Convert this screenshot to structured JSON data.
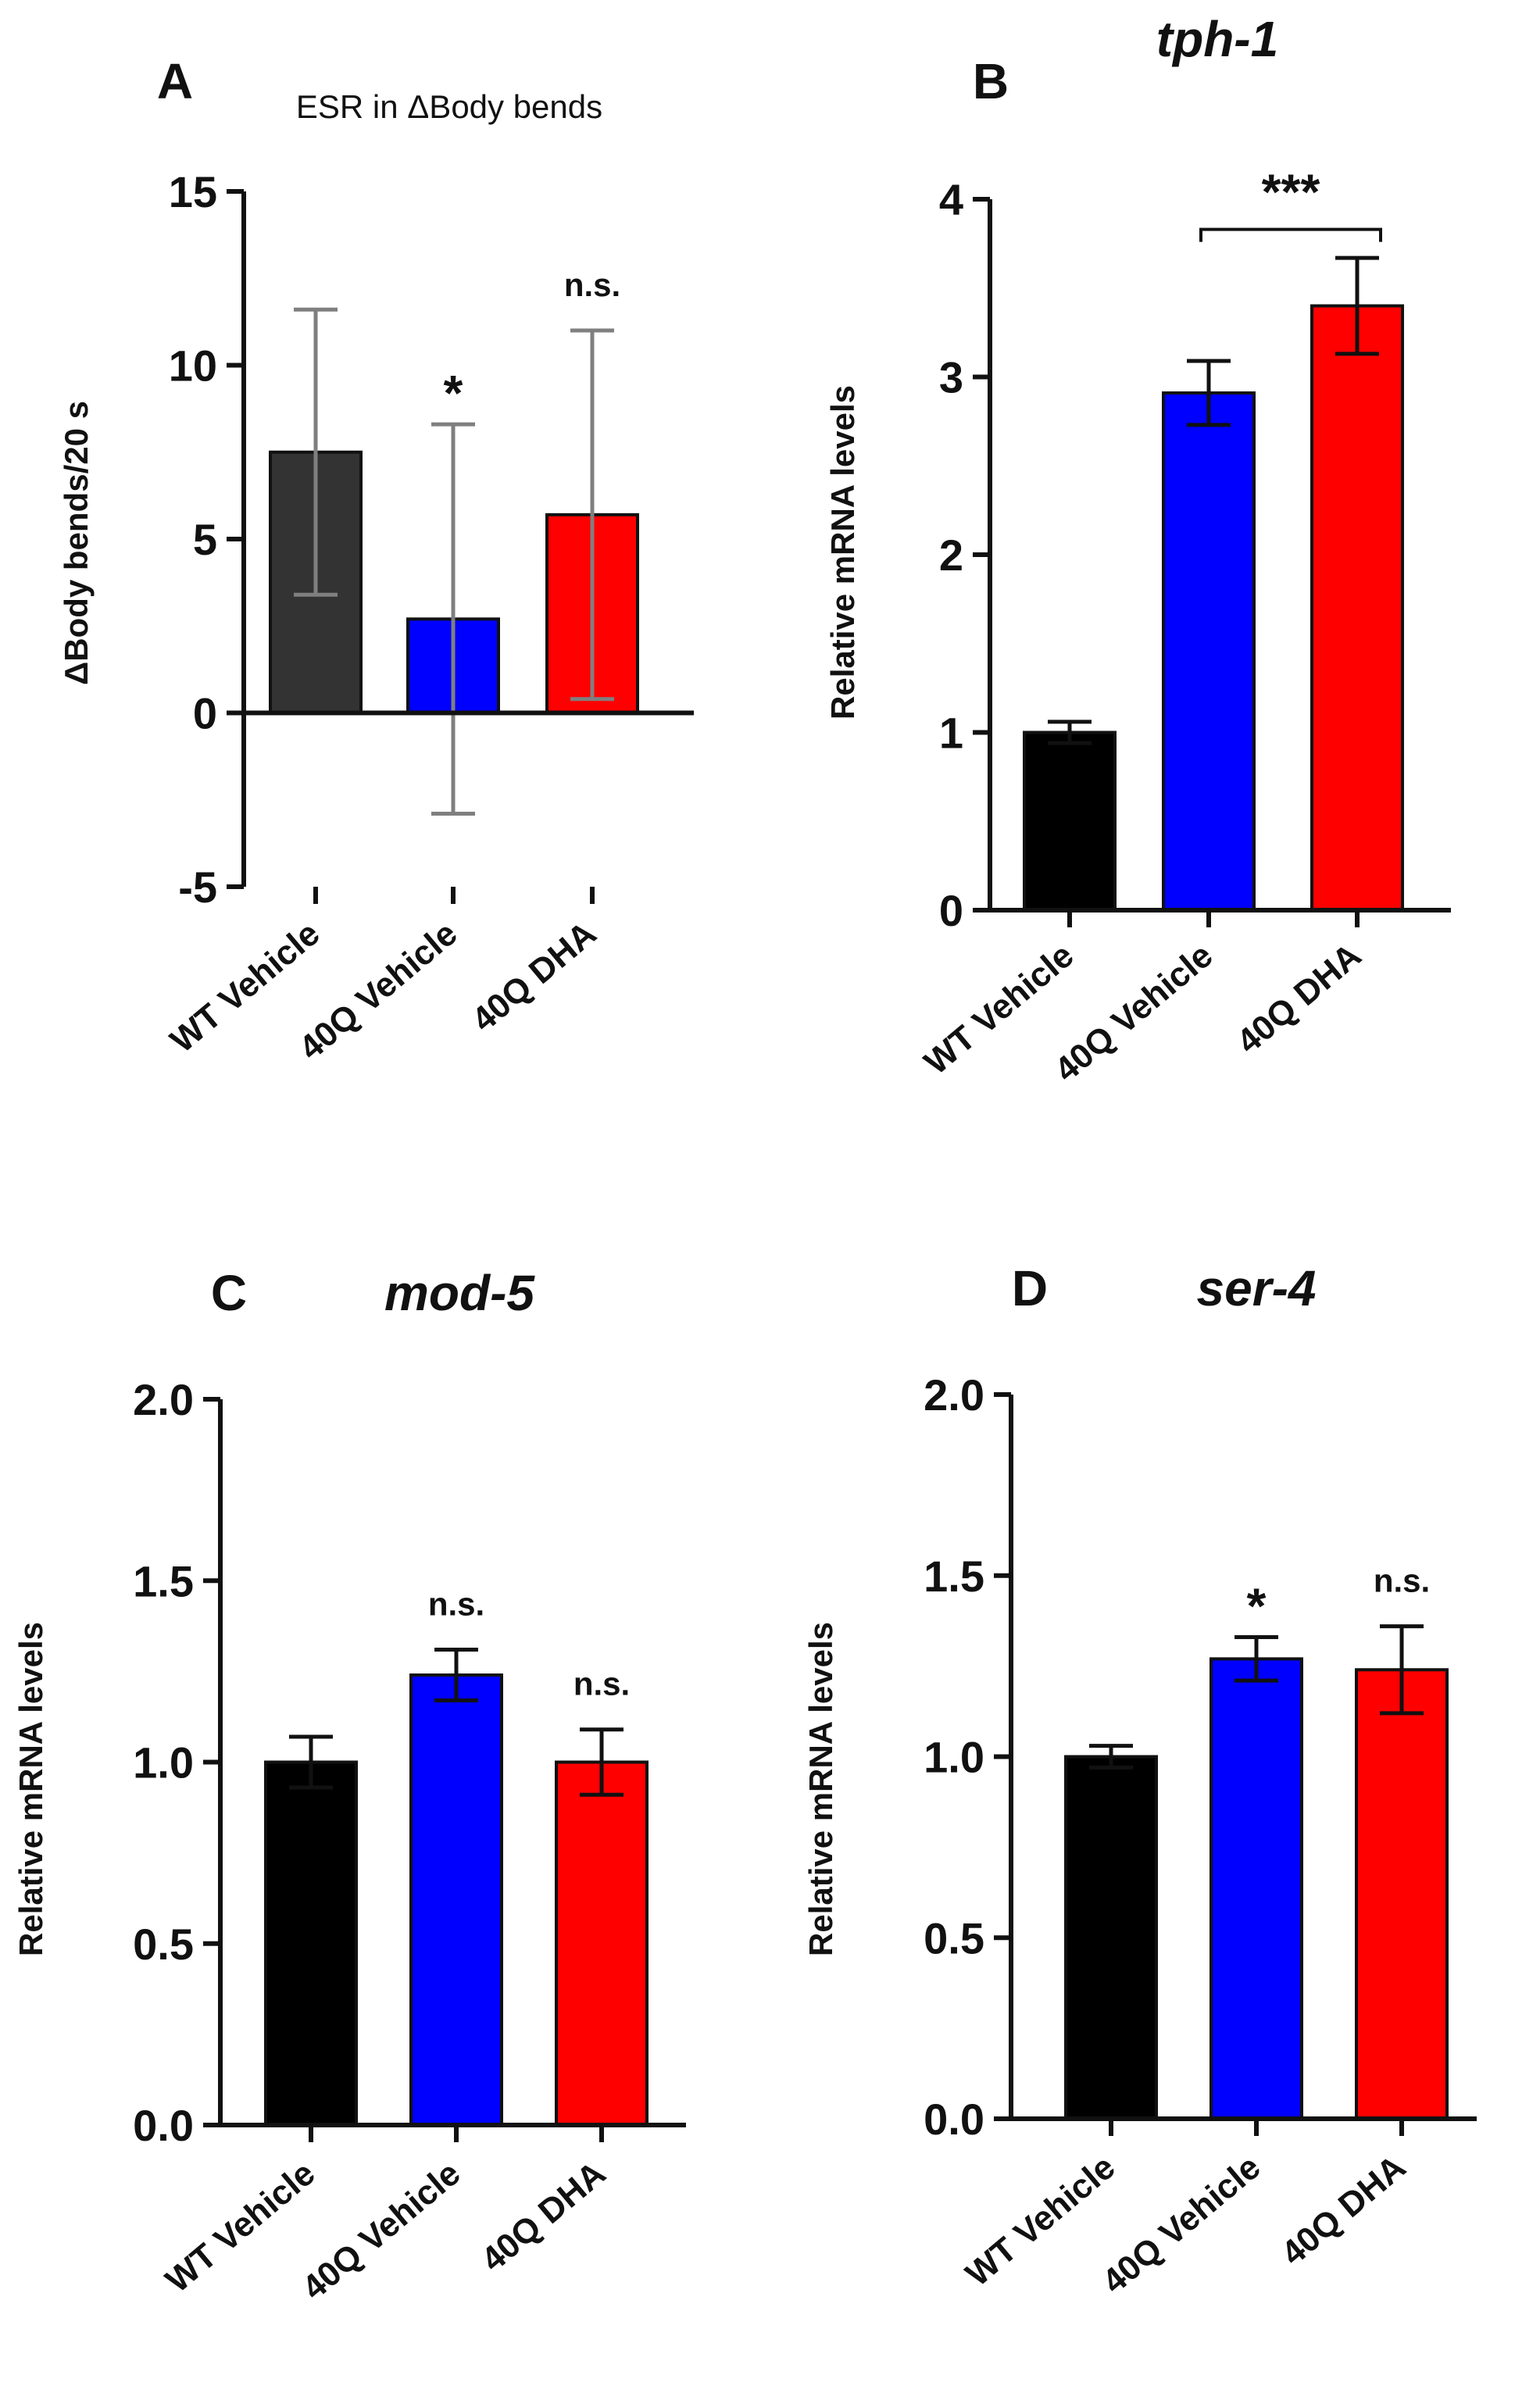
{
  "chart_data": [
    {
      "id": "A",
      "type": "bar",
      "panel_letter": "A",
      "title": "",
      "subtitle": "ESR in ΔBody bends",
      "xlabel": "",
      "ylabel": "ΔBody bends/20 s",
      "ylim": [
        -5,
        15
      ],
      "yticks": [
        -5,
        0,
        5,
        10,
        15
      ],
      "ytick_labels": [
        "-5",
        "0",
        "5",
        "10",
        "15"
      ],
      "categories": [
        "WT Vehicle",
        "40Q Vehicle",
        "40Q DHA"
      ],
      "values": [
        7.5,
        2.7,
        5.7
      ],
      "errors": [
        4.1,
        5.6,
        5.3
      ],
      "colors": [
        "#333333",
        "#0000ff",
        "#ff0000"
      ],
      "error_color": "#7f7f7f",
      "annotations": [
        "",
        "*",
        "n.s."
      ],
      "bracket": null
    },
    {
      "id": "B",
      "type": "bar",
      "panel_letter": "B",
      "title": "tph-1",
      "subtitle": "",
      "xlabel": "",
      "ylabel": "Relative mRNA levels",
      "ylim": [
        0,
        4
      ],
      "yticks": [
        0,
        1,
        2,
        3,
        4
      ],
      "ytick_labels": [
        "0",
        "1",
        "2",
        "3",
        "4"
      ],
      "categories": [
        "WT Vehicle",
        "40Q Vehicle",
        "40Q DHA"
      ],
      "values": [
        1.0,
        2.91,
        3.4
      ],
      "errors": [
        0.06,
        0.18,
        0.27
      ],
      "colors": [
        "#000000",
        "#0000ff",
        "#ff0000"
      ],
      "error_color": "#111111",
      "annotations": [
        "",
        "",
        ""
      ],
      "bracket": {
        "from": 1,
        "to": 2,
        "label": "***",
        "y": 3.83
      }
    },
    {
      "id": "C",
      "type": "bar",
      "panel_letter": "C",
      "title": "mod-5",
      "subtitle": "",
      "xlabel": "",
      "ylabel": "Relative mRNA levels",
      "ylim": [
        0,
        2
      ],
      "yticks": [
        0,
        0.5,
        1,
        1.5,
        2
      ],
      "ytick_labels": [
        "0.0",
        "0.5",
        "1.0",
        "1.5",
        "2.0"
      ],
      "categories": [
        "WT Vehicle",
        "40Q Vehicle",
        "40Q DHA"
      ],
      "values": [
        1.0,
        1.24,
        1.0
      ],
      "errors": [
        0.07,
        0.07,
        0.09
      ],
      "colors": [
        "#000000",
        "#0000ff",
        "#ff0000"
      ],
      "error_color": "#111111",
      "annotations": [
        "",
        "n.s.",
        "n.s."
      ],
      "bracket": null
    },
    {
      "id": "D",
      "type": "bar",
      "panel_letter": "D",
      "title": "ser-4",
      "subtitle": "",
      "xlabel": "",
      "ylabel": "Relative mRNA levels",
      "ylim": [
        0,
        2
      ],
      "yticks": [
        0,
        0.5,
        1,
        1.5,
        2
      ],
      "ytick_labels": [
        "0.0",
        "0.5",
        "1.0",
        "1.5",
        "2.0"
      ],
      "categories": [
        "WT Vehicle",
        "40Q Vehicle",
        "40Q DHA"
      ],
      "values": [
        1.0,
        1.27,
        1.24
      ],
      "errors": [
        0.03,
        0.06,
        0.12
      ],
      "colors": [
        "#000000",
        "#0000ff",
        "#ff0000"
      ],
      "error_color": "#111111",
      "annotations": [
        "",
        "*",
        "n.s."
      ],
      "bracket": null
    }
  ]
}
